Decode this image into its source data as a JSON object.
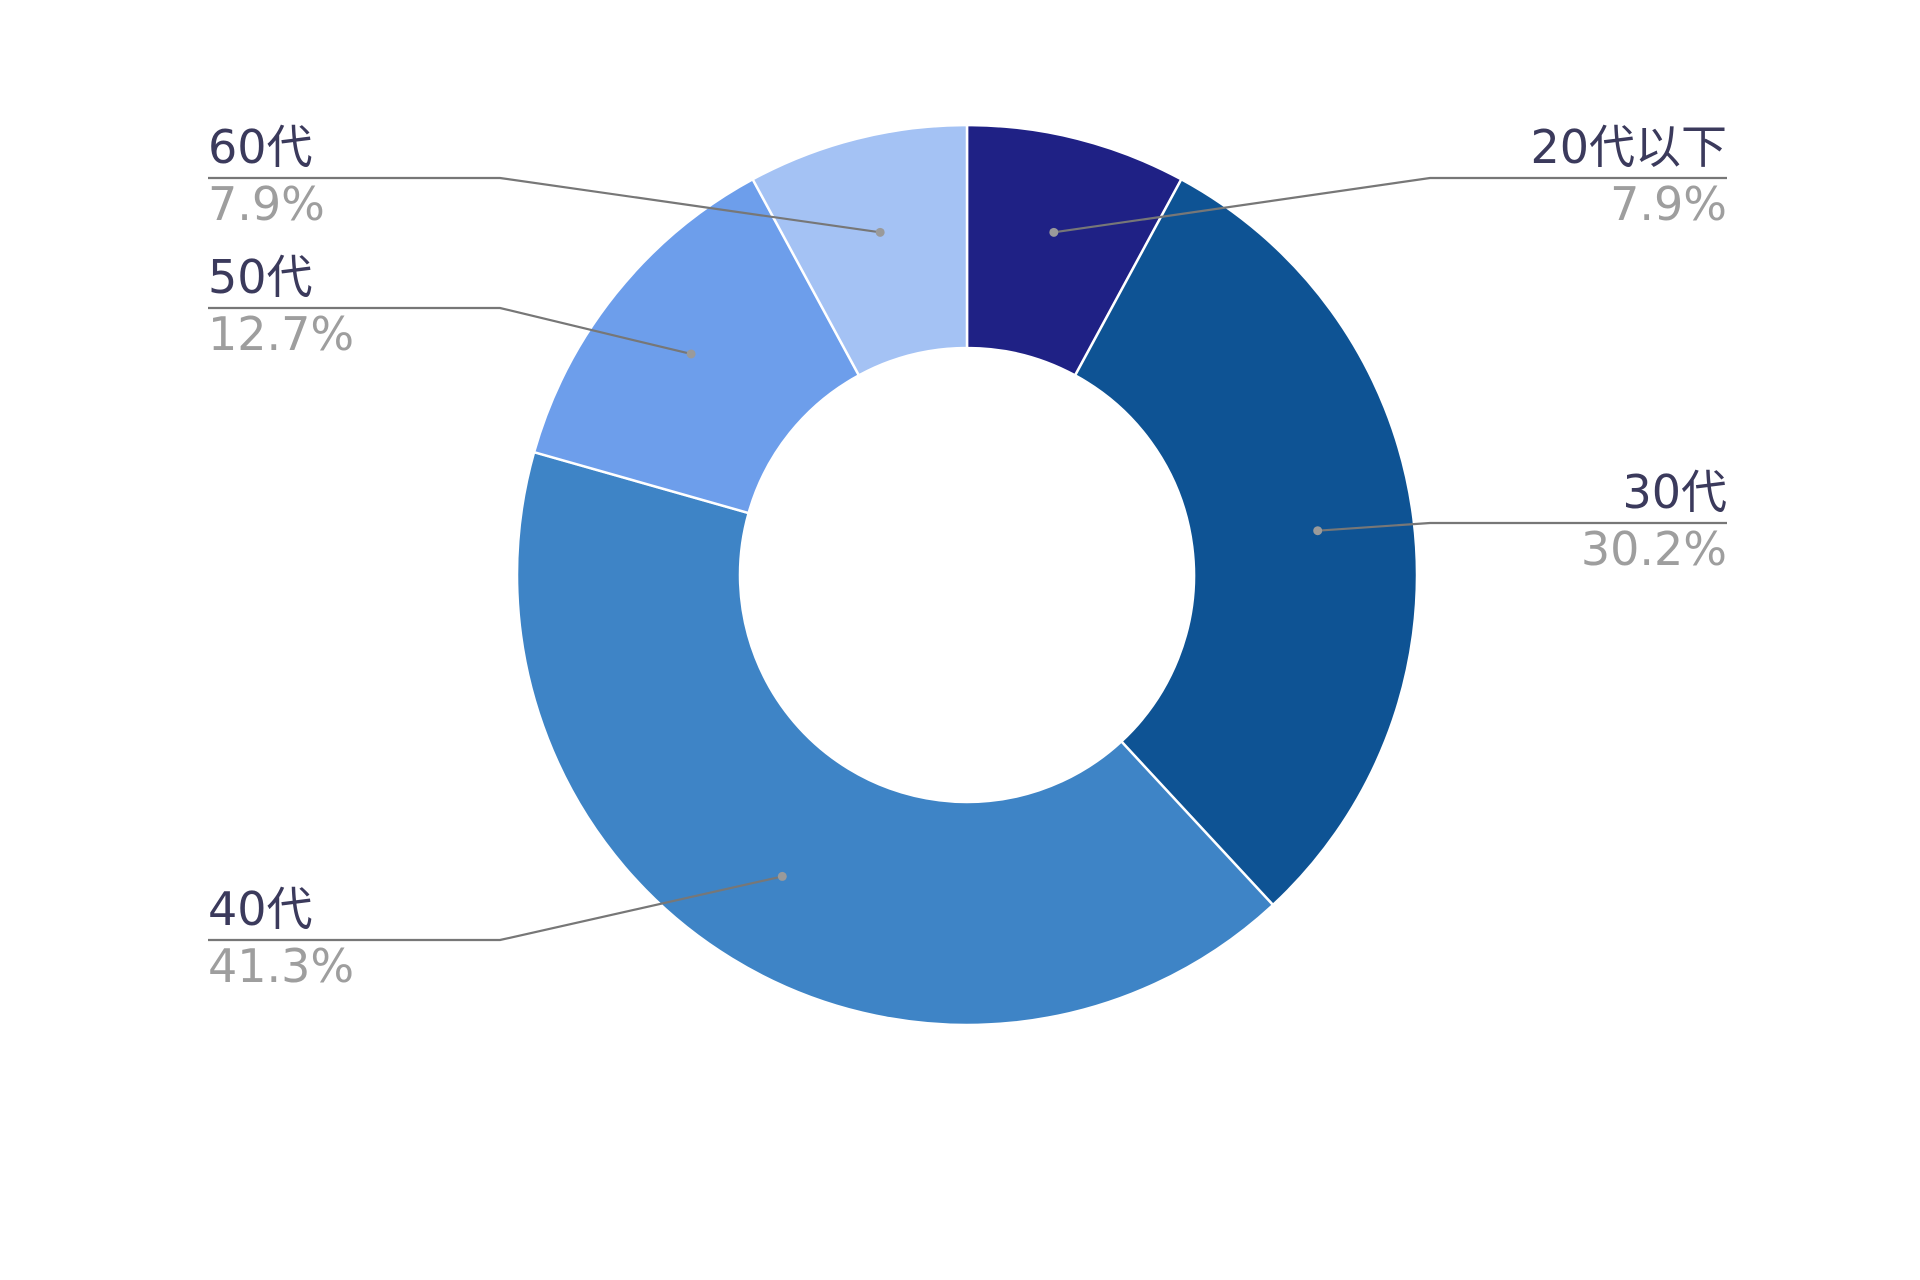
{
  "chart_data": {
    "type": "pie",
    "donut": true,
    "categories": [
      "20代以下",
      "30代",
      "40代",
      "50代",
      "60代"
    ],
    "values": [
      7.9,
      30.2,
      41.3,
      12.7,
      7.9
    ],
    "value_labels": [
      "7.9%",
      "30.2%",
      "41.3%",
      "12.7%",
      "7.9%"
    ],
    "colors": [
      "#1f2185",
      "#0e5394",
      "#3e84c6",
      "#6d9eeb",
      "#a4c2f4"
    ],
    "legend": "none"
  }
}
